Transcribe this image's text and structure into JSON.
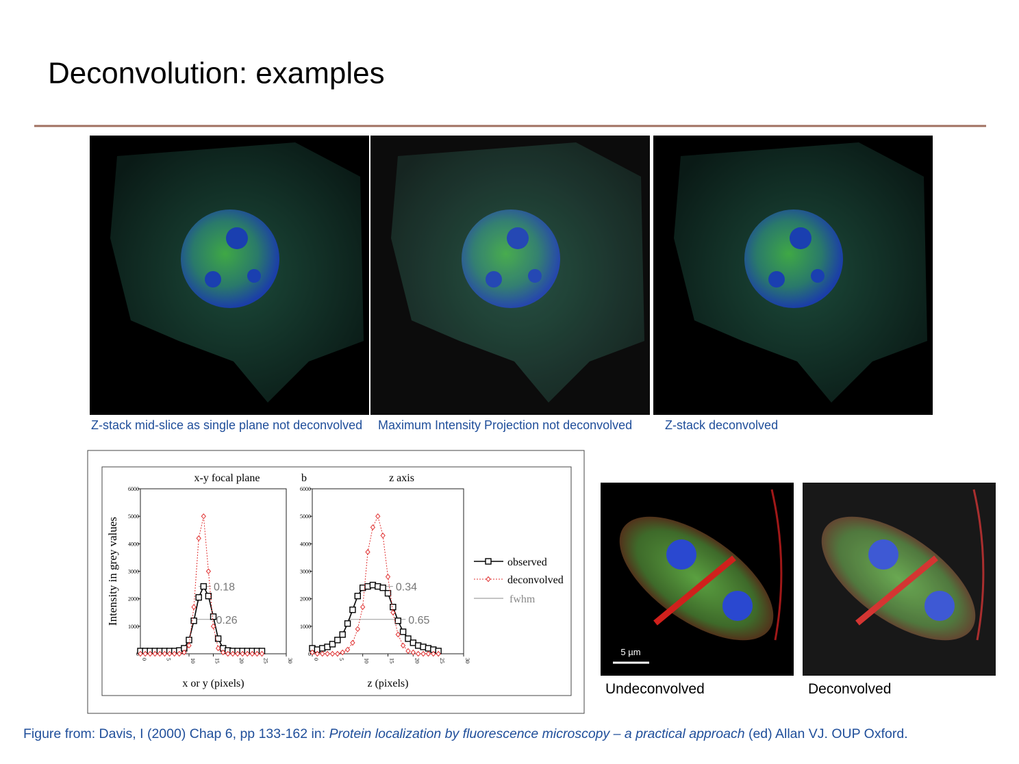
{
  "title": "Deconvolution: examples",
  "top_images": [
    {
      "caption": "Z-stack mid-slice as single plane not deconvolved"
    },
    {
      "caption": "Maximum Intensity Projection not deconvolved"
    },
    {
      "caption": "Z-stack deconvolved"
    }
  ],
  "chart_data": [
    {
      "type": "line",
      "title": "x-y focal plane",
      "x_label": "x or y (pixels)",
      "y_label": "Intensity in grey values",
      "xlim": [
        0,
        30
      ],
      "xticks": [
        0,
        5,
        10,
        15,
        20,
        25,
        30
      ],
      "ylim": [
        0,
        6000
      ],
      "yticks": [
        0,
        1000,
        2000,
        3000,
        4000,
        5000,
        6000
      ],
      "x": [
        0,
        1,
        2,
        3,
        4,
        5,
        6,
        7,
        8,
        9,
        10,
        11,
        12,
        13,
        14,
        15,
        16,
        17,
        18,
        19,
        20,
        21,
        22,
        23,
        24,
        25
      ],
      "series": [
        {
          "name": "observed",
          "color": "#000000",
          "values": [
            100,
            100,
            100,
            100,
            100,
            100,
            100,
            100,
            120,
            200,
            500,
            1200,
            2050,
            2450,
            2100,
            1350,
            550,
            200,
            120,
            100,
            100,
            100,
            100,
            100,
            100,
            100
          ]
        },
        {
          "name": "deconvolved",
          "color": "#e03030",
          "values": [
            0,
            0,
            0,
            0,
            0,
            0,
            0,
            0,
            0,
            50,
            300,
            1700,
            4200,
            5000,
            3000,
            1000,
            200,
            50,
            0,
            0,
            0,
            0,
            0,
            0,
            0,
            0
          ]
        }
      ],
      "fwhm_name": "fwhm",
      "fwhm_color": "#888888",
      "annotations": [
        {
          "text": "0.18",
          "y": 2450,
          "x": [
            12,
            14.5
          ]
        },
        {
          "text": "0.26",
          "y": 1250,
          "x": [
            10.8,
            15
          ]
        }
      ]
    },
    {
      "type": "line",
      "panel_label": "b",
      "title": "z axis",
      "x_label": "z (pixels)",
      "xlim": [
        0,
        30
      ],
      "xticks": [
        0,
        5,
        10,
        15,
        20,
        25,
        30
      ],
      "ylim": [
        0,
        6000
      ],
      "yticks": [
        0,
        1000,
        2000,
        3000,
        4000,
        5000,
        6000
      ],
      "x": [
        0,
        1,
        2,
        3,
        4,
        5,
        6,
        7,
        8,
        9,
        10,
        11,
        12,
        13,
        14,
        15,
        16,
        17,
        18,
        19,
        20,
        21,
        22,
        23,
        24,
        25
      ],
      "series": [
        {
          "name": "observed",
          "color": "#000000",
          "values": [
            200,
            150,
            200,
            250,
            350,
            500,
            700,
            1100,
            1600,
            2100,
            2400,
            2450,
            2500,
            2450,
            2400,
            2200,
            1700,
            1200,
            800,
            550,
            400,
            300,
            250,
            200,
            150,
            100
          ]
        },
        {
          "name": "deconvolved",
          "color": "#e03030",
          "values": [
            50,
            0,
            0,
            0,
            0,
            0,
            50,
            150,
            400,
            900,
            1700,
            3700,
            4600,
            5000,
            4300,
            2800,
            1500,
            700,
            300,
            100,
            50,
            0,
            0,
            0,
            0,
            0
          ]
        }
      ],
      "annotations": [
        {
          "text": "0.34",
          "y": 2450,
          "x": [
            9.5,
            16
          ]
        },
        {
          "text": "0.65",
          "y": 1250,
          "x": [
            7,
            18.5
          ]
        }
      ]
    }
  ],
  "bottom_images": [
    {
      "caption": "Undeconvolved",
      "scale_bar": "5 µm"
    },
    {
      "caption": "Deconvolved"
    }
  ],
  "citation": {
    "prefix": "Figure from: Davis, I (2000) Chap 6, pp 133-162 in: ",
    "book": "Protein localization by fluorescence microscopy – a practical approach",
    "suffix": " (ed) Allan VJ. OUP Oxford."
  }
}
